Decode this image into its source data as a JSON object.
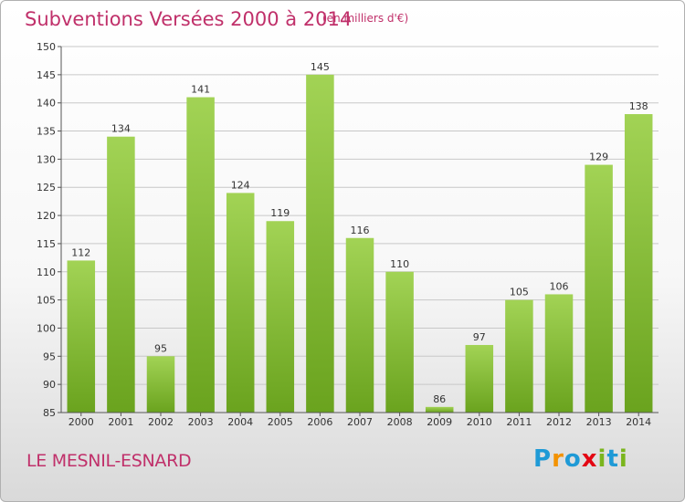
{
  "header": {
    "title": "Subventions Versées 2000 à 2014",
    "subtitle": "(en milliers d'€)"
  },
  "footer": {
    "commune": "LE MESNIL-ESNARD",
    "logo_text": "Proxiti"
  },
  "colors": {
    "title": "#c0306a",
    "bar_light": "#a2d355",
    "bar_dark": "#6aa31e",
    "axis": "#555555",
    "grid": "#c8c8c8",
    "logo_letters": [
      "#1f9ad6",
      "#f39200",
      "#1f9ad6",
      "#e30613",
      "#7ab51d",
      "#1f9ad6",
      "#7ab51d"
    ]
  },
  "chart_data": {
    "type": "bar",
    "title": "Subventions Versées 2000 à 2014",
    "subtitle": "(en milliers d'€)",
    "categories": [
      "2000",
      "2001",
      "2002",
      "2003",
      "2004",
      "2005",
      "2006",
      "2007",
      "2008",
      "2009",
      "2010",
      "2011",
      "2012",
      "2013",
      "2014"
    ],
    "values": [
      112,
      134,
      95,
      141,
      124,
      119,
      145,
      116,
      110,
      86,
      97,
      105,
      106,
      129,
      138
    ],
    "ylim": [
      85,
      150
    ],
    "yticks": [
      85,
      90,
      95,
      100,
      105,
      110,
      115,
      120,
      125,
      130,
      135,
      140,
      145,
      150
    ],
    "grid": true,
    "data_labels": true
  }
}
